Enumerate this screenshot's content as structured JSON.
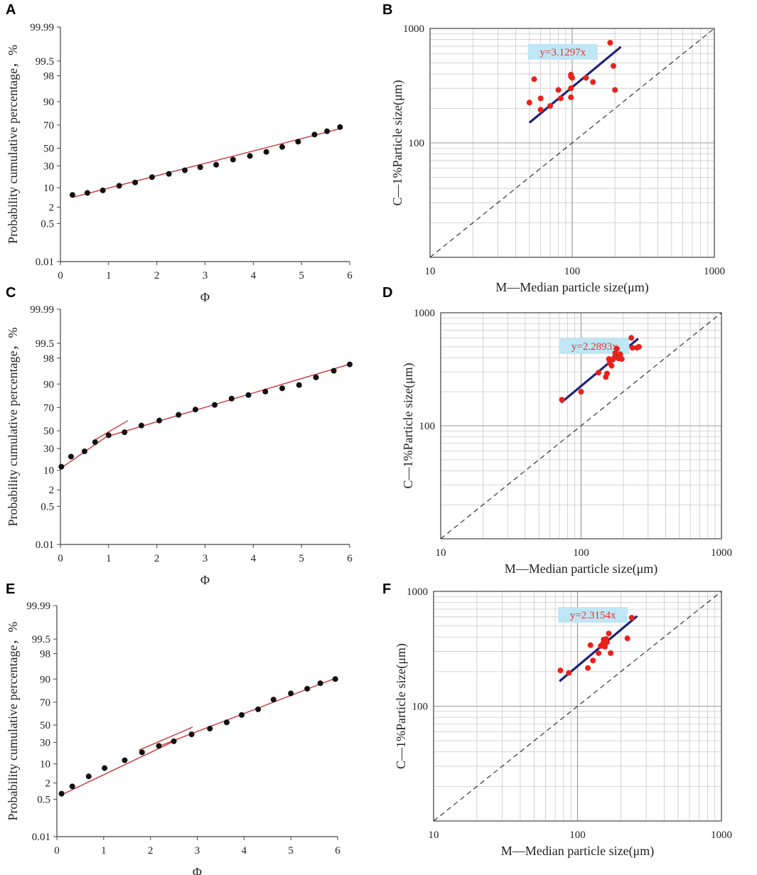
{
  "figure": {
    "panels": [
      {
        "letter": "A",
        "kind": "prob",
        "chart": 0
      },
      {
        "letter": "B",
        "kind": "cm",
        "chart": 3
      },
      {
        "letter": "C",
        "kind": "prob",
        "chart": 1
      },
      {
        "letter": "D",
        "kind": "cm",
        "chart": 4
      },
      {
        "letter": "E",
        "kind": "prob",
        "chart": 2
      },
      {
        "letter": "F",
        "kind": "cm",
        "chart": 5
      }
    ]
  },
  "colors": {
    "prob_points": "#111111",
    "prob_line": "#c8373a",
    "cm_points": "#e8221b",
    "cm_fit": "#1f2277",
    "grid": "#c8c8c8",
    "eq_box": "#bfe6f5",
    "eq_text": "#e8322a",
    "axis": "#444444"
  },
  "chart_data": [
    {
      "type": "scatter",
      "title": "",
      "xlabel": "Φ",
      "ylabel": "Probability cumulative percentage，%",
      "xlim": [
        0,
        6
      ],
      "x_ticks": [
        "0",
        "1",
        "2",
        "3",
        "4",
        "5",
        "6"
      ],
      "y_ticks": [
        "99.99",
        "99.5",
        "98",
        "90",
        "70",
        "50",
        "30",
        "10",
        "2",
        "0.5",
        "0.01"
      ],
      "x": [
        0.25,
        0.56,
        0.88,
        1.22,
        1.55,
        1.9,
        2.25,
        2.58,
        2.9,
        3.23,
        3.58,
        3.93,
        4.27,
        4.6,
        4.93,
        5.27,
        5.53,
        5.8
      ],
      "y": [
        5.5,
        6.5,
        8,
        11,
        13,
        17,
        20,
        24,
        28,
        31,
        36,
        40,
        45,
        51,
        55,
        61,
        64,
        68
      ],
      "segments": [
        {
          "x": [
            0.25,
            5.85
          ],
          "y": [
            4.5,
            67
          ]
        }
      ]
    },
    {
      "type": "scatter",
      "title": "",
      "xlabel": "Φ",
      "ylabel": "Probability cumulative percentage，%",
      "xlim": [
        0,
        6
      ],
      "x_ticks": [
        "0",
        "1",
        "2",
        "3",
        "4",
        "5",
        "6"
      ],
      "y_ticks": [
        "99.99",
        "99.5",
        "98",
        "90",
        "70",
        "50",
        "30",
        "10",
        "2",
        "0.5",
        "0.01"
      ],
      "x": [
        0.02,
        0.22,
        0.5,
        0.72,
        1.0,
        1.33,
        1.68,
        2.05,
        2.45,
        2.8,
        3.2,
        3.55,
        3.9,
        4.25,
        4.6,
        4.95,
        5.3,
        5.67,
        6.0
      ],
      "y": [
        12,
        20,
        26,
        36,
        44,
        48,
        54,
        58,
        63,
        68,
        72,
        77,
        80,
        83,
        86,
        89,
        92,
        94,
        96
      ],
      "segments": [
        {
          "x": [
            0.0,
            1.0
          ],
          "y": [
            11,
            44
          ]
        },
        {
          "x": [
            0.7,
            1.4
          ],
          "y": [
            38,
            58
          ]
        },
        {
          "x": [
            0.95,
            6.05
          ],
          "y": [
            42,
            96.3
          ]
        }
      ]
    },
    {
      "type": "scatter",
      "title": "",
      "xlabel": "Φ",
      "ylabel": "Probability cumulative percentage，%",
      "xlim": [
        0,
        6
      ],
      "x_ticks": [
        "0",
        "1",
        "2",
        "3",
        "4",
        "5",
        "6"
      ],
      "y_ticks": [
        "99.99",
        "99.5",
        "98",
        "90",
        "70",
        "50",
        "30",
        "10",
        "2",
        "0.5",
        "0.01"
      ],
      "x": [
        0.1,
        0.33,
        0.68,
        1.02,
        1.45,
        1.82,
        2.18,
        2.5,
        2.88,
        3.27,
        3.63,
        3.95,
        4.3,
        4.63,
        5.0,
        5.35,
        5.63,
        5.95
      ],
      "y": [
        0.8,
        1.5,
        3.5,
        7,
        12,
        18,
        25,
        31,
        38,
        45,
        52,
        58,
        63,
        72,
        77,
        81,
        86,
        90
      ],
      "segments": [
        {
          "x": [
            0.08,
            2.55
          ],
          "y": [
            0.7,
            32
          ]
        },
        {
          "x": [
            1.75,
            2.9
          ],
          "y": [
            20,
            47
          ]
        },
        {
          "x": [
            2.2,
            6.0
          ],
          "y": [
            25,
            90.5
          ]
        }
      ]
    },
    {
      "type": "scatter",
      "title": "",
      "xlabel": "M—Median particle size(μm)",
      "ylabel": "C—1%Particle size(μm)",
      "scale": "log",
      "xlim": [
        10,
        1000
      ],
      "ylim": [
        10,
        1000
      ],
      "x_ticks": [
        "10",
        "100",
        "1000"
      ],
      "y_ticks": [
        "100",
        "1000"
      ],
      "equation": "y=3.1297x",
      "fit": {
        "x": [
          50,
          220
        ],
        "y": [
          150,
          690
        ]
      },
      "reference": {
        "x": [
          10,
          1000
        ],
        "y": [
          10,
          1000
        ]
      },
      "x": [
        50,
        54,
        60,
        60,
        70,
        80,
        83,
        98,
        98,
        98,
        98,
        100,
        125,
        140,
        185,
        195,
        200
      ],
      "y": [
        225,
        360,
        195,
        245,
        210,
        290,
        245,
        395,
        380,
        250,
        300,
        370,
        370,
        340,
        750,
        470,
        290
      ]
    },
    {
      "type": "scatter",
      "title": "",
      "xlabel": "M—Median particle size(μm)",
      "ylabel": "C—1%Particle size(μm)",
      "scale": "log",
      "xlim": [
        10,
        1000
      ],
      "ylim": [
        10,
        1000
      ],
      "x_ticks": [
        "10",
        "100",
        "1000"
      ],
      "y_ticks": [
        "100",
        "1000"
      ],
      "equation": "y=2.2893x",
      "fit": {
        "x": [
          72,
          255
        ],
        "y": [
          160,
          590
        ]
      },
      "reference": {
        "x": [
          10,
          1000
        ],
        "y": [
          10,
          1000
        ]
      },
      "x": [
        73,
        100,
        133,
        150,
        153,
        158,
        160,
        165,
        168,
        172,
        175,
        180,
        185,
        190,
        195,
        228,
        232,
        250,
        258
      ],
      "y": [
        170,
        200,
        295,
        270,
        290,
        390,
        360,
        340,
        385,
        400,
        440,
        480,
        395,
        430,
        390,
        600,
        490,
        490,
        500
      ]
    },
    {
      "type": "scatter",
      "title": "",
      "xlabel": "M—Median particle size(μm)",
      "ylabel": "C—1%Particle size(μm)",
      "scale": "log",
      "xlim": [
        10,
        1000
      ],
      "ylim": [
        10,
        1000
      ],
      "x_ticks": [
        "10",
        "100",
        "1000"
      ],
      "y_ticks": [
        "100",
        "1000"
      ],
      "equation": "y=2.3154x",
      "fit": {
        "x": [
          75,
          260
        ],
        "y": [
          165,
          610
        ]
      },
      "reference": {
        "x": [
          10,
          1000
        ],
        "y": [
          10,
          1000
        ]
      },
      "x": [
        76,
        87,
        118,
        123,
        128,
        140,
        145,
        150,
        152,
        155,
        158,
        160,
        165,
        170,
        222,
        238
      ],
      "y": [
        205,
        195,
        215,
        340,
        250,
        290,
        335,
        350,
        380,
        330,
        385,
        360,
        430,
        290,
        390,
        590
      ]
    }
  ]
}
